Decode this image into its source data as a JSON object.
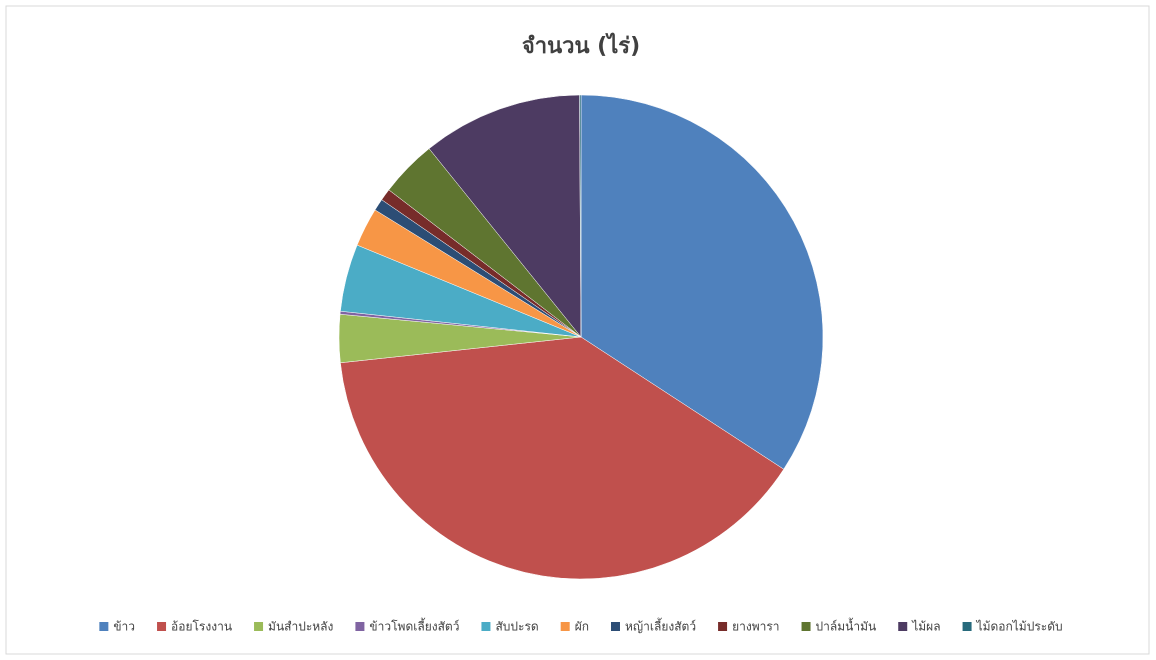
{
  "chart_data": {
    "type": "pie",
    "title": "จำนวน (ไร่)",
    "categories": [
      "ข้าว",
      "อ้อยโรงงาน",
      "มันสำปะหลัง",
      "ข้าวโพดเลี้ยงสัตว์",
      "สับปะรด",
      "ผัก",
      "หญ้าเลี้ยงสัตว์",
      "ยางพารา",
      "ปาล์มน้ำมัน",
      "ไม้ผล",
      "ไม้ดอกไม้ประดับ"
    ],
    "values": [
      34.2,
      39.1,
      3.2,
      0.2,
      4.5,
      2.6,
      0.8,
      0.8,
      3.8,
      10.7,
      0.1
    ],
    "colors": [
      "#4f81bd",
      "#c0504d",
      "#9bbb59",
      "#8064a2",
      "#4bacc6",
      "#f79646",
      "#2c4d75",
      "#772c2a",
      "#5f7530",
      "#4d3b62",
      "#276a7c"
    ],
    "legend": "bottom"
  }
}
